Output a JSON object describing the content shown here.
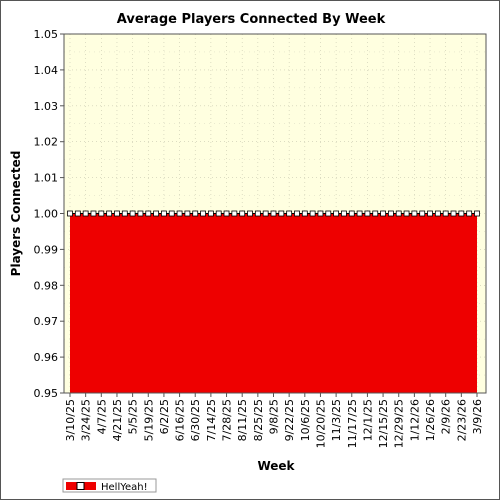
{
  "chart_data": {
    "type": "area",
    "title": "Average Players Connected By Week",
    "xlabel": "Week",
    "ylabel": "Players Connected",
    "ylim": [
      0.95,
      1.05
    ],
    "y_ticks": [
      "0.95",
      "0.96",
      "0.97",
      "0.98",
      "0.99",
      "1.00",
      "1.01",
      "1.02",
      "1.03",
      "1.04",
      "1.05"
    ],
    "x_tick_labels": [
      "3/10/25",
      "3/24/25",
      "4/7/25",
      "4/21/25",
      "5/5/25",
      "5/19/25",
      "6/2/25",
      "6/16/25",
      "6/30/25",
      "7/14/25",
      "7/28/25",
      "8/11/25",
      "8/25/25",
      "9/8/25",
      "9/22/25",
      "10/6/25",
      "10/20/25",
      "11/3/25",
      "11/17/25",
      "12/1/25",
      "12/15/25",
      "12/29/25",
      "1/12/26",
      "1/26/26",
      "2/9/26",
      "2/23/26",
      "3/9/26"
    ],
    "grid": true,
    "legend": "bottom-left",
    "background_color": "#FFFFE0",
    "series": [
      {
        "name": "HellYeah!",
        "color": "#EE0000",
        "marker": "square",
        "x": [
          "3/10/25",
          "3/17/25",
          "3/24/25",
          "3/31/25",
          "4/7/25",
          "4/14/25",
          "4/21/25",
          "4/28/25",
          "5/5/25",
          "5/12/25",
          "5/19/25",
          "5/26/25",
          "6/2/25",
          "6/9/25",
          "6/16/25",
          "6/23/25",
          "6/30/25",
          "7/7/25",
          "7/14/25",
          "7/21/25",
          "7/28/25",
          "8/4/25",
          "8/11/25",
          "8/18/25",
          "8/25/25",
          "9/1/25",
          "9/8/25",
          "9/15/25",
          "9/22/25",
          "9/29/25",
          "10/6/25",
          "10/13/25",
          "10/20/25",
          "10/27/25",
          "11/3/25",
          "11/10/25",
          "11/17/25",
          "11/24/25",
          "12/1/25",
          "12/8/25",
          "12/15/25",
          "12/22/25",
          "12/29/25",
          "1/5/26",
          "1/12/26",
          "1/19/26",
          "1/26/26",
          "2/2/26",
          "2/9/26",
          "2/16/26",
          "2/23/26",
          "3/2/26",
          "3/9/26"
        ],
        "values": [
          1,
          1,
          1,
          1,
          1,
          1,
          1,
          1,
          1,
          1,
          1,
          1,
          1,
          1,
          1,
          1,
          1,
          1,
          1,
          1,
          1,
          1,
          1,
          1,
          1,
          1,
          1,
          1,
          1,
          1,
          1,
          1,
          1,
          1,
          1,
          1,
          1,
          1,
          1,
          1,
          1,
          1,
          1,
          1,
          1,
          1,
          1,
          1,
          1,
          1,
          1,
          1,
          1
        ]
      }
    ]
  }
}
